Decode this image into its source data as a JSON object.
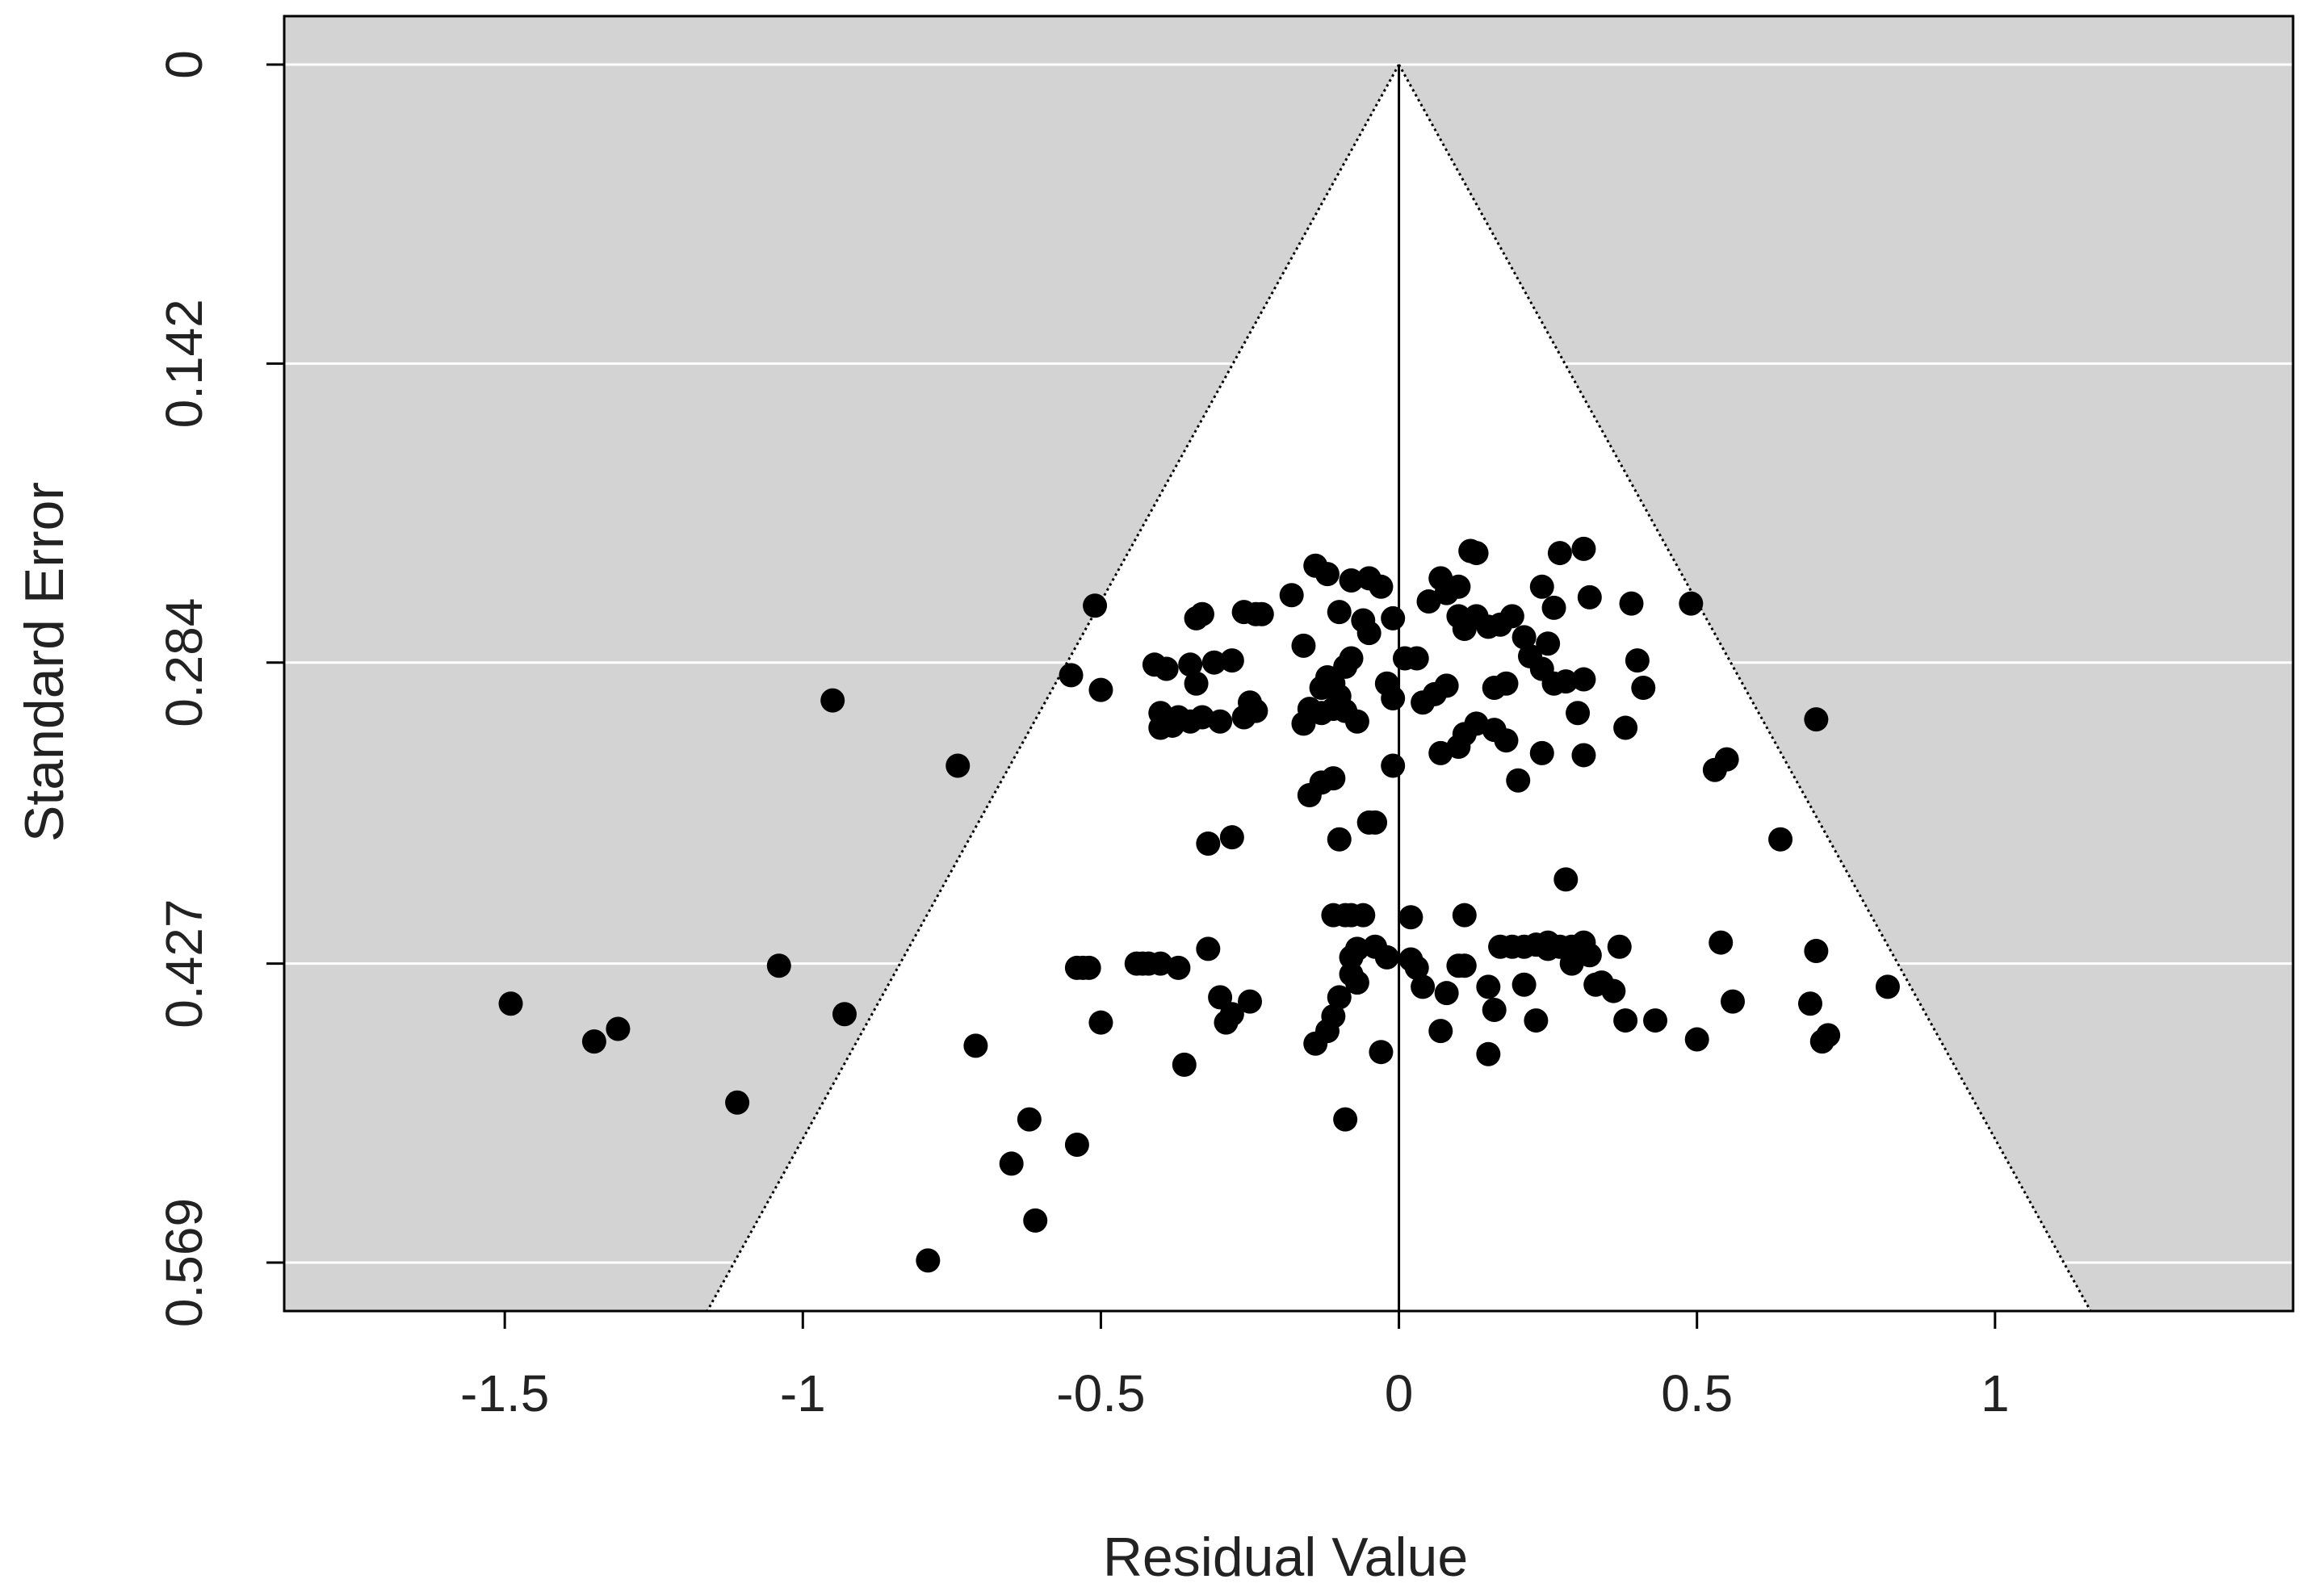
{
  "chart_data": {
    "type": "scatter",
    "title": "",
    "xlabel": "Residual Value",
    "ylabel": "Standard Error",
    "xlim": [
      -1.87,
      1.5
    ],
    "ylim": [
      0.592,
      -0.023
    ],
    "y_reversed": true,
    "x_ticks": [
      -1.5,
      -1,
      -0.5,
      0,
      0.5,
      1
    ],
    "x_tick_labels": [
      "-1.5",
      "-1",
      "-0.5",
      "0",
      "0.5",
      "1"
    ],
    "y_ticks": [
      0,
      0.142,
      0.284,
      0.427,
      0.569
    ],
    "y_tick_labels": [
      "0",
      "0.142",
      "0.284",
      "0.427",
      "0.569"
    ],
    "grid": "horizontal",
    "funnel": {
      "center": 0,
      "z": 1.96
    },
    "colors": {
      "panel": "#d3d3d3",
      "funnel_fill": "#ffffff",
      "point": "#000000",
      "grid": "#ffffff",
      "axis": "#000000"
    },
    "points": [
      [
        -1.49,
        0.446
      ],
      [
        -1.35,
        0.464
      ],
      [
        -1.31,
        0.458
      ],
      [
        -1.11,
        0.493
      ],
      [
        -1.04,
        0.428
      ],
      [
        -0.95,
        0.302
      ],
      [
        -0.93,
        0.451
      ],
      [
        -0.74,
        0.333
      ],
      [
        -0.71,
        0.466
      ],
      [
        -0.65,
        0.522
      ],
      [
        -0.62,
        0.501
      ],
      [
        -0.61,
        0.549
      ],
      [
        -0.79,
        0.568
      ],
      [
        -0.55,
        0.29
      ],
      [
        -0.54,
        0.429
      ],
      [
        -0.53,
        0.429
      ],
      [
        -0.52,
        0.429
      ],
      [
        -0.54,
        0.513
      ],
      [
        -0.51,
        0.257
      ],
      [
        -0.5,
        0.297
      ],
      [
        -0.5,
        0.455
      ],
      [
        -0.44,
        0.427
      ],
      [
        -0.43,
        0.427
      ],
      [
        -0.42,
        0.427
      ],
      [
        -0.4,
        0.427
      ],
      [
        -0.37,
        0.429
      ],
      [
        -0.4,
        0.308
      ],
      [
        -0.4,
        0.315
      ],
      [
        -0.38,
        0.314
      ],
      [
        -0.37,
        0.31
      ],
      [
        -0.35,
        0.312
      ],
      [
        -0.33,
        0.31
      ],
      [
        -0.3,
        0.312
      ],
      [
        -0.41,
        0.285
      ],
      [
        -0.39,
        0.287
      ],
      [
        -0.35,
        0.285
      ],
      [
        -0.31,
        0.284
      ],
      [
        -0.28,
        0.283
      ],
      [
        -0.34,
        0.294
      ],
      [
        -0.36,
        0.475
      ],
      [
        -0.34,
        0.263
      ],
      [
        -0.33,
        0.261
      ],
      [
        -0.26,
        0.26
      ],
      [
        -0.24,
        0.261
      ],
      [
        -0.23,
        0.261
      ],
      [
        -0.32,
        0.37
      ],
      [
        -0.28,
        0.367
      ],
      [
        -0.32,
        0.42
      ],
      [
        -0.3,
        0.443
      ],
      [
        -0.28,
        0.451
      ],
      [
        -0.25,
        0.445
      ],
      [
        -0.29,
        0.455
      ],
      [
        -0.26,
        0.31
      ],
      [
        -0.24,
        0.307
      ],
      [
        -0.25,
        0.303
      ],
      [
        -0.18,
        0.252
      ],
      [
        -0.16,
        0.276
      ],
      [
        -0.14,
        0.238
      ],
      [
        -0.12,
        0.242
      ],
      [
        -0.1,
        0.26
      ],
      [
        -0.08,
        0.245
      ],
      [
        -0.05,
        0.244
      ],
      [
        -0.03,
        0.248
      ],
      [
        -0.13,
        0.296
      ],
      [
        -0.12,
        0.291
      ],
      [
        -0.11,
        0.294
      ],
      [
        -0.1,
        0.3
      ],
      [
        -0.09,
        0.286
      ],
      [
        -0.08,
        0.282
      ],
      [
        -0.16,
        0.313
      ],
      [
        -0.15,
        0.306
      ],
      [
        -0.13,
        0.308
      ],
      [
        -0.11,
        0.306
      ],
      [
        -0.09,
        0.307
      ],
      [
        -0.07,
        0.312
      ],
      [
        -0.15,
        0.347
      ],
      [
        -0.13,
        0.341
      ],
      [
        -0.11,
        0.339
      ],
      [
        -0.1,
        0.368
      ],
      [
        -0.05,
        0.36
      ],
      [
        -0.04,
        0.36
      ],
      [
        -0.11,
        0.404
      ],
      [
        -0.09,
        0.404
      ],
      [
        -0.08,
        0.404
      ],
      [
        -0.06,
        0.404
      ],
      [
        -0.08,
        0.424
      ],
      [
        -0.07,
        0.42
      ],
      [
        -0.04,
        0.419
      ],
      [
        -0.02,
        0.424
      ],
      [
        -0.08,
        0.432
      ],
      [
        -0.1,
        0.443
      ],
      [
        -0.11,
        0.452
      ],
      [
        -0.14,
        0.465
      ],
      [
        -0.12,
        0.459
      ],
      [
        -0.03,
        0.469
      ],
      [
        -0.07,
        0.436
      ],
      [
        -0.09,
        0.501
      ],
      [
        -0.06,
        0.264
      ],
      [
        -0.05,
        0.27
      ],
      [
        -0.01,
        0.263
      ],
      [
        0.01,
        0.282
      ],
      [
        -0.02,
        0.294
      ],
      [
        -0.01,
        0.301
      ],
      [
        -0.01,
        0.333
      ],
      [
        0.03,
        0.282
      ],
      [
        0.04,
        0.303
      ],
      [
        0.06,
        0.299
      ],
      [
        0.05,
        0.255
      ],
      [
        0.07,
        0.244
      ],
      [
        0.08,
        0.251
      ],
      [
        0.1,
        0.248
      ],
      [
        0.02,
        0.425
      ],
      [
        0.03,
        0.429
      ],
      [
        0.04,
        0.438
      ],
      [
        0.08,
        0.441
      ],
      [
        0.1,
        0.428
      ],
      [
        0.11,
        0.428
      ],
      [
        0.02,
        0.405
      ],
      [
        0.07,
        0.459
      ],
      [
        0.07,
        0.327
      ],
      [
        0.08,
        0.295
      ],
      [
        0.12,
        0.231
      ],
      [
        0.13,
        0.232
      ],
      [
        0.1,
        0.262
      ],
      [
        0.11,
        0.268
      ],
      [
        0.13,
        0.262
      ],
      [
        0.15,
        0.267
      ],
      [
        0.17,
        0.266
      ],
      [
        0.19,
        0.262
      ],
      [
        0.21,
        0.272
      ],
      [
        0.16,
        0.296
      ],
      [
        0.18,
        0.294
      ],
      [
        0.11,
        0.318
      ],
      [
        0.13,
        0.313
      ],
      [
        0.16,
        0.316
      ],
      [
        0.18,
        0.321
      ],
      [
        0.1,
        0.324
      ],
      [
        0.11,
        0.404
      ],
      [
        0.15,
        0.438
      ],
      [
        0.16,
        0.449
      ],
      [
        0.15,
        0.47
      ],
      [
        0.21,
        0.437
      ],
      [
        0.23,
        0.454
      ],
      [
        0.25,
        0.42
      ],
      [
        0.17,
        0.419
      ],
      [
        0.19,
        0.419
      ],
      [
        0.21,
        0.419
      ],
      [
        0.23,
        0.418
      ],
      [
        0.25,
        0.417
      ],
      [
        0.27,
        0.419
      ],
      [
        0.29,
        0.419
      ],
      [
        0.24,
        0.248
      ],
      [
        0.26,
        0.258
      ],
      [
        0.27,
        0.232
      ],
      [
        0.31,
        0.23
      ],
      [
        0.32,
        0.253
      ],
      [
        0.22,
        0.281
      ],
      [
        0.24,
        0.287
      ],
      [
        0.26,
        0.294
      ],
      [
        0.28,
        0.293
      ],
      [
        0.31,
        0.292
      ],
      [
        0.25,
        0.275
      ],
      [
        0.2,
        0.34
      ],
      [
        0.24,
        0.327
      ],
      [
        0.31,
        0.328
      ],
      [
        0.3,
        0.308
      ],
      [
        0.28,
        0.387
      ],
      [
        0.29,
        0.427
      ],
      [
        0.32,
        0.423
      ],
      [
        0.31,
        0.417
      ],
      [
        0.33,
        0.437
      ],
      [
        0.34,
        0.436
      ],
      [
        0.36,
        0.44
      ],
      [
        0.37,
        0.419
      ],
      [
        0.38,
        0.454
      ],
      [
        0.39,
        0.256
      ],
      [
        0.4,
        0.283
      ],
      [
        0.41,
        0.296
      ],
      [
        0.38,
        0.315
      ],
      [
        0.49,
        0.256
      ],
      [
        0.53,
        0.335
      ],
      [
        0.54,
        0.417
      ],
      [
        0.55,
        0.33
      ],
      [
        0.56,
        0.445
      ],
      [
        0.5,
        0.463
      ],
      [
        0.43,
        0.454
      ],
      [
        0.64,
        0.368
      ],
      [
        0.7,
        0.311
      ],
      [
        0.7,
        0.421
      ],
      [
        0.69,
        0.446
      ],
      [
        0.71,
        0.464
      ],
      [
        0.72,
        0.461
      ],
      [
        0.82,
        0.438
      ]
    ]
  }
}
